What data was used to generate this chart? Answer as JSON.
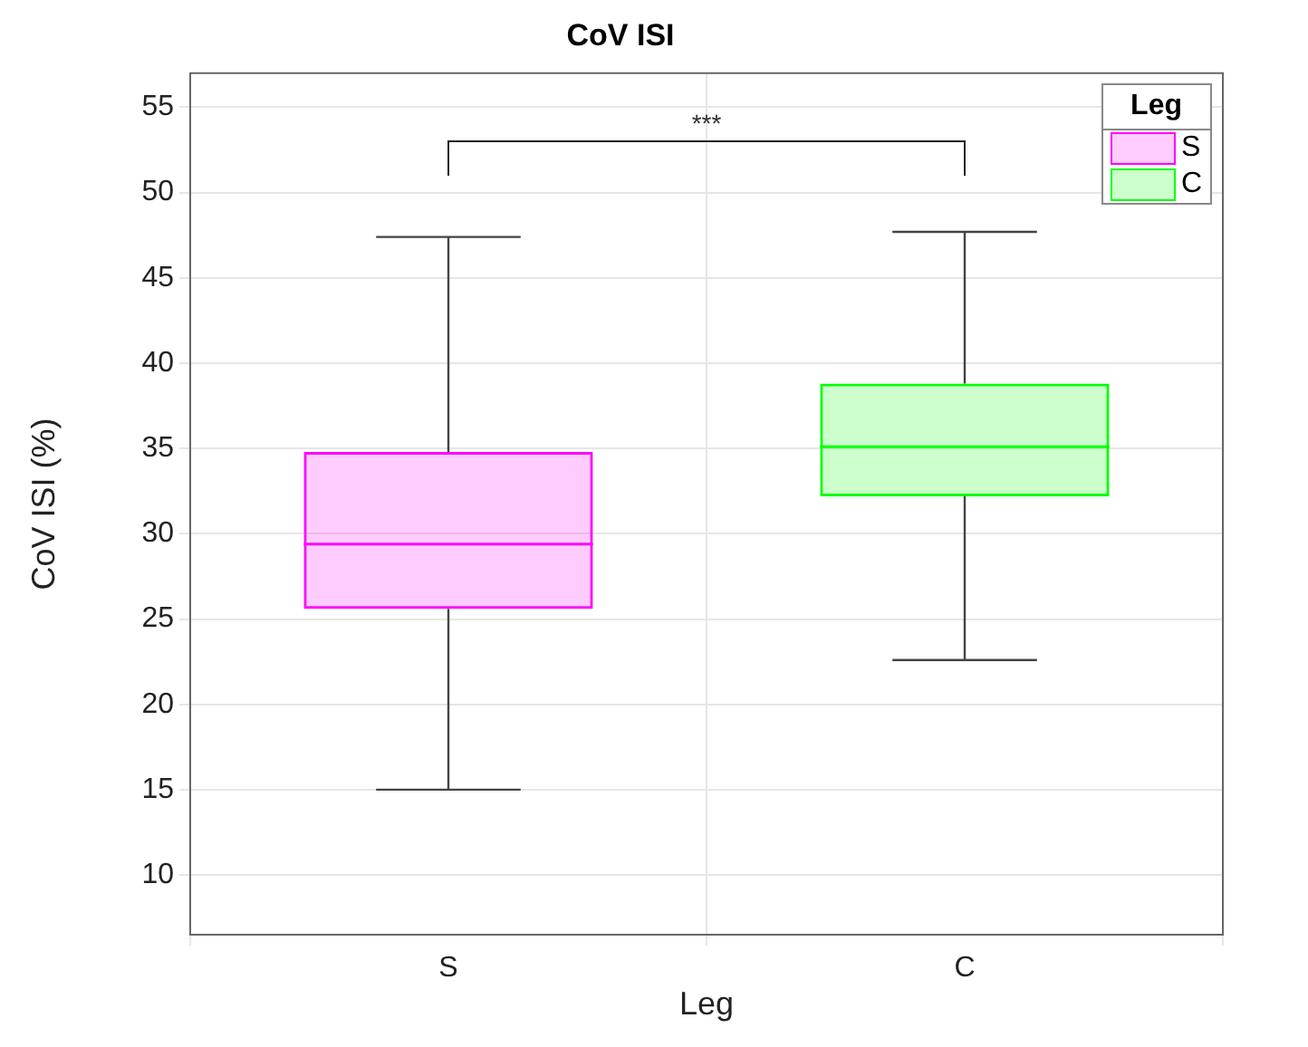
{
  "chart_data": {
    "type": "box",
    "title": "CoV ISI",
    "xlabel": "Leg",
    "ylabel": "CoV ISI (%)",
    "legend_title": "Leg",
    "categories": [
      "S",
      "C"
    ],
    "series": [
      {
        "name": "S",
        "color": "#ff00ff",
        "boxes": [
          {
            "low": 15.0,
            "q1": 25.6,
            "median": 29.4,
            "q3": 34.8,
            "high": 47.4
          },
          null
        ]
      },
      {
        "name": "C",
        "color": "#00ff00",
        "boxes": [
          null,
          {
            "low": 22.6,
            "q1": 32.2,
            "median": 35.1,
            "q3": 38.8,
            "high": 47.7
          }
        ]
      }
    ],
    "ylim": [
      6.5,
      57
    ],
    "yticks": [
      10,
      15,
      20,
      25,
      30,
      35,
      40,
      45,
      50,
      55
    ],
    "annotations": [
      "***"
    ],
    "grid": true,
    "legend": "top right"
  }
}
